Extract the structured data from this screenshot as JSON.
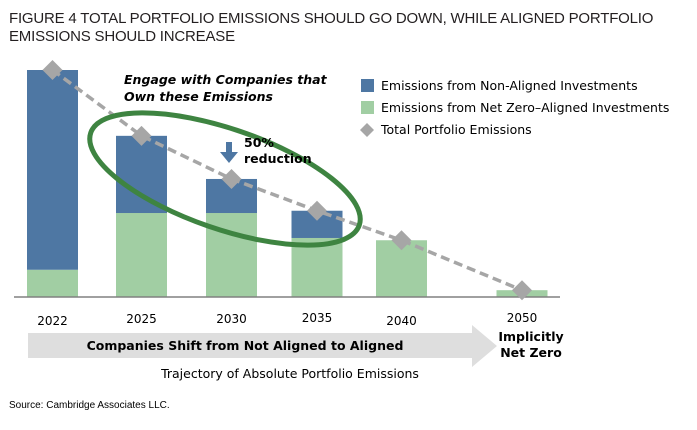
{
  "title": "FIGURE 4  TOTAL PORTFOLIO EMISSIONS SHOULD GO DOWN, WHILE ALIGNED PORTFOLIO EMISSIONS SHOULD INCREASE",
  "source": "Source: Cambridge Associates LLC.",
  "colors": {
    "non_aligned": "#4e77a3",
    "aligned": "#a1cea3",
    "total": "#a6a6a6",
    "ellipse": "#3e8441",
    "arrow_band": "#dedede",
    "axis": "#808080"
  },
  "chart_data": {
    "type": "bar",
    "stacked": true,
    "title": "FIGURE 4  TOTAL PORTFOLIO EMISSIONS SHOULD GO DOWN, WHILE ALIGNED PORTFOLIO EMISSIONS SHOULD INCREASE",
    "xlabel": "Trajectory of Absolute Portfolio Emissions",
    "ylabel": "",
    "y_axis_shown": false,
    "ylim": [
      0,
      100
    ],
    "units": "index (2022 total = 100, estimated)",
    "categories": [
      "2022",
      "2025",
      "2030",
      "2035",
      "2040",
      "2050"
    ],
    "series": [
      {
        "name": "Emissions from Net Zero–Aligned Investments",
        "type": "bar",
        "color_key": "aligned",
        "values": [
          12,
          37,
          37,
          26,
          25,
          3
        ]
      },
      {
        "name": "Emissions from Non-Aligned Investments",
        "type": "bar",
        "color_key": "non_aligned",
        "values": [
          88,
          34,
          15,
          12,
          0,
          0
        ]
      },
      {
        "name": "Total Portfolio Emissions",
        "type": "line",
        "marker": "diamond",
        "dashed": true,
        "color_key": "total",
        "values": [
          100,
          71,
          52,
          38,
          25,
          3
        ]
      }
    ],
    "legend": {
      "position": "top-right",
      "entries": [
        {
          "label": "Emissions from Non-Aligned Investments",
          "symbol": "square",
          "color_key": "non_aligned"
        },
        {
          "label": "Emissions from Net Zero–Aligned Investments",
          "symbol": "square",
          "color_key": "aligned"
        },
        {
          "label": "Total Portfolio Emissions",
          "symbol": "diamond",
          "color_key": "total"
        }
      ]
    },
    "annotations": {
      "engage_line1": "Engage with Companies that",
      "engage_line2": "Own these Emissions",
      "reduction_line1": "50%",
      "reduction_line2": "reduction",
      "shift_arrow": "Companies Shift from Not Aligned to Aligned",
      "end_line1": "Implicitly",
      "end_line2": "Net Zero"
    }
  }
}
